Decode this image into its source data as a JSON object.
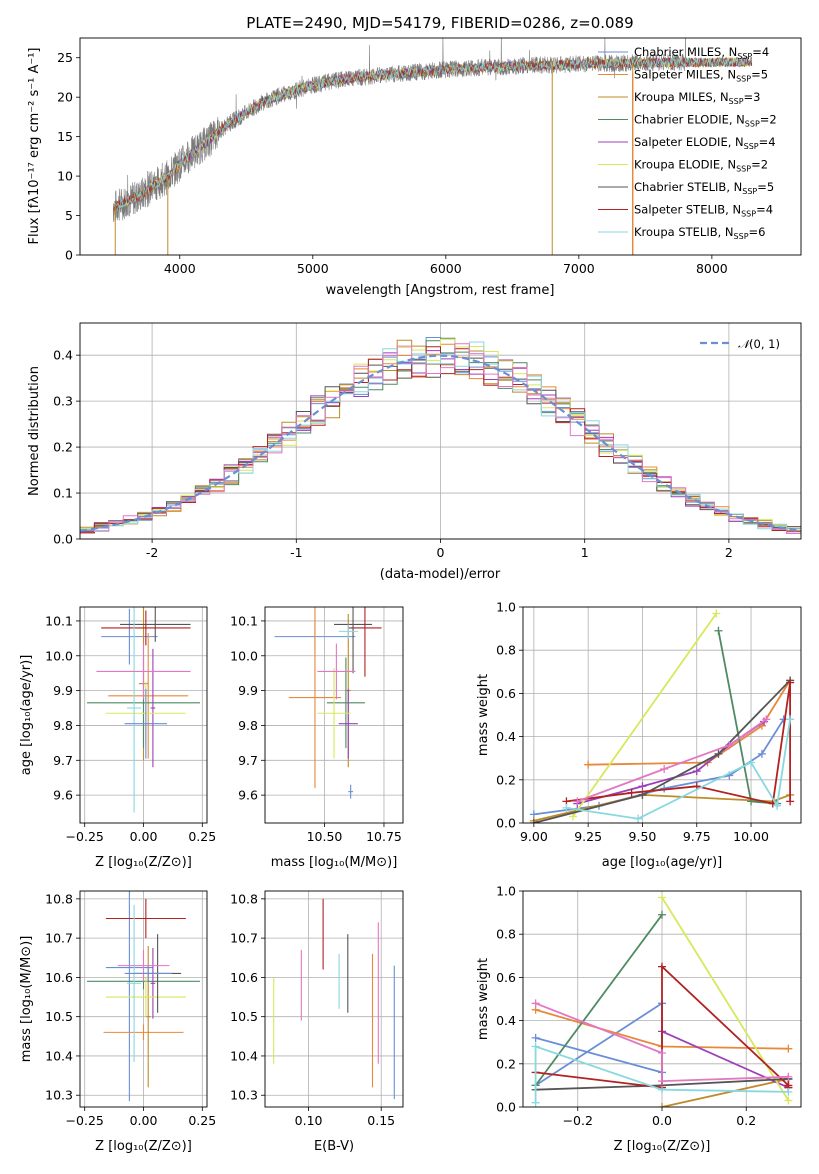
{
  "colors": [
    "#6a8fd6",
    "#e8883a",
    "#c08a28",
    "#4f8a63",
    "#9d3fb8",
    "#d8e85a",
    "#555555",
    "#b22222",
    "#88d8e0",
    "#e377c2"
  ],
  "chart_data": [
    {
      "id": "spectrum",
      "type": "line",
      "title": "PLATE=2490, MJD=54179, FIBERID=0286, z=0.089",
      "xlabel": "wavelength [Angstrom, rest frame]",
      "ylabel": "Flux [fλ10⁻¹⁷ erg cm⁻² s⁻¹ A⁻¹]",
      "xlim": [
        3250,
        8670
      ],
      "ylim": [
        0,
        27.5
      ],
      "xticks": [
        4000,
        5000,
        6000,
        7000,
        8000
      ],
      "yticks": [
        0,
        5,
        10,
        15,
        20,
        25
      ],
      "grid": false,
      "legend_position": "top-right",
      "continuum": {
        "x": [
          3500,
          3600,
          3700,
          3800,
          3900,
          4000,
          4100,
          4200,
          4300,
          4400,
          4500,
          4600,
          4800,
          5000,
          5200,
          5500,
          5800,
          6000,
          6300,
          6600,
          7000,
          7300,
          7600,
          8000,
          8300,
          8670
        ],
        "y": [
          6.0,
          6.8,
          7.5,
          8.8,
          9.8,
          11.5,
          13.0,
          14.2,
          15.8,
          17.0,
          18.0,
          19.2,
          20.5,
          21.5,
          22.2,
          22.8,
          23.2,
          23.5,
          23.8,
          24.0,
          24.2,
          24.3,
          24.4,
          24.4,
          24.5,
          24.6
        ]
      },
      "spikes": [
        {
          "x": 3515,
          "y": 0
        },
        {
          "x": 3910,
          "y": 0
        },
        {
          "x": 6800,
          "y": 0
        },
        {
          "x": 7405,
          "y": 0
        }
      ],
      "series": [
        {
          "name": "Chabrier MILES, Nₛₛₚ=4",
          "label_main": "Chabrier MILES, N",
          "label_sub": "SSP",
          "label_end": "=4"
        },
        {
          "name": "Salpeter MILES, Nₛₛₚ=5",
          "label_main": "Salpeter MILES, N",
          "label_sub": "SSP",
          "label_end": "=5"
        },
        {
          "name": "Kroupa MILES, Nₛₛₚ=3",
          "label_main": "Kroupa MILES, N",
          "label_sub": "SSP",
          "label_end": "=3"
        },
        {
          "name": "Chabrier ELODIE, Nₛₛₚ=2",
          "label_main": "Chabrier ELODIE, N",
          "label_sub": "SSP",
          "label_end": "=2"
        },
        {
          "name": "Salpeter ELODIE, Nₛₛₚ=4",
          "label_main": "Salpeter ELODIE, N",
          "label_sub": "SSP",
          "label_end": "=4"
        },
        {
          "name": "Kroupa ELODIE, Nₛₛₚ=2",
          "label_main": "Kroupa ELODIE, N",
          "label_sub": "SSP",
          "label_end": "=2"
        },
        {
          "name": "Chabrier STELIB, Nₛₛₚ=5",
          "label_main": "Chabrier STELIB, N",
          "label_sub": "SSP",
          "label_end": "=5"
        },
        {
          "name": "Salpeter STELIB, Nₛₛₚ=4",
          "label_main": "Salpeter STELIB, N",
          "label_sub": "SSP",
          "label_end": "=4"
        },
        {
          "name": "Kroupa STELIB, Nₛₛₚ=6",
          "label_main": "Kroupa STELIB, N",
          "label_sub": "SSP",
          "label_end": "=6"
        }
      ]
    },
    {
      "id": "residuals",
      "type": "bar",
      "xlabel": "(data-model)/error",
      "ylabel": "Normed distribution",
      "xlim": [
        -2.5,
        2.5
      ],
      "ylim": [
        0,
        0.47
      ],
      "xticks": [
        -2,
        -1,
        0,
        1,
        2
      ],
      "yticks": [
        0.0,
        0.1,
        0.2,
        0.3,
        0.4
      ],
      "grid": true,
      "legend_position": "top-right",
      "bin_width": 0.1,
      "gaussian": {
        "name": "N(0,1)",
        "label_script": "𝒩",
        "label_args": "(0, 1)",
        "mu": 0,
        "sigma": 1
      }
    },
    {
      "id": "z-age",
      "type": "scatter",
      "xlabel": "Z [log₁₀(Z/Z⊙)]",
      "ylabel": "age  [log₁₀(age/yr)]",
      "xlim": [
        -0.27,
        0.27
      ],
      "ylim": [
        9.52,
        10.14
      ],
      "xticks": [
        -0.25,
        0.0,
        0.25
      ],
      "xticklabels": [
        "−0.25",
        "0.00",
        "0.25"
      ],
      "yticks": [
        9.6,
        9.7,
        9.8,
        9.9,
        10.0,
        10.1
      ],
      "grid": true,
      "points": [
        {
          "x": -0.06,
          "y": 10.055,
          "xerr": 0.12,
          "yerr": 0.08
        },
        {
          "x": 0.02,
          "y": 9.885,
          "xerr": 0.17,
          "yerr": 0.18
        },
        {
          "x": 0.0,
          "y": 9.92,
          "xerr": 0.02,
          "yerr": 0.22
        },
        {
          "x": 0.0,
          "y": 9.865,
          "xerr": 0.24,
          "yerr": 0.13
        },
        {
          "x": 0.04,
          "y": 9.85,
          "xerr": 0.01,
          "yerr": 0.17
        },
        {
          "x": 0.01,
          "y": 9.835,
          "xerr": 0.17,
          "yerr": 0.09
        },
        {
          "x": 0.05,
          "y": 10.09,
          "xerr": 0.15,
          "yerr": 0.05
        },
        {
          "x": 0.01,
          "y": 10.08,
          "xerr": 0.19,
          "yerr": 0.05
        },
        {
          "x": -0.04,
          "y": 9.85,
          "xerr": 0.03,
          "yerr": 0.3
        },
        {
          "x": 0.0,
          "y": 9.955,
          "xerr": 0.2,
          "yerr": 0.08
        },
        {
          "x": 0.01,
          "y": 9.805,
          "xerr": 0.09,
          "yerr": 0.1
        }
      ]
    },
    {
      "id": "mass-age",
      "type": "scatter",
      "xlabel": "mass [log₁₀(M/M⊙)]",
      "xlim": [
        10.25,
        10.83
      ],
      "ylim": [
        9.52,
        10.14
      ],
      "xticks": [
        10.5,
        10.75
      ],
      "xticklabels": [
        "10.50",
        "10.75"
      ],
      "yticks": [
        9.6,
        9.7,
        9.8,
        9.9,
        10.0,
        10.1
      ],
      "grid": true,
      "points": [
        {
          "x": 10.46,
          "y": 10.055,
          "xerr": 0.17,
          "yerr": 0.04
        },
        {
          "x": 10.46,
          "y": 9.88,
          "xerr": 0.11,
          "yerr": 0.26
        },
        {
          "x": 10.6,
          "y": 9.9,
          "xerr": 0.01,
          "yerr": 0.22
        },
        {
          "x": 10.59,
          "y": 9.865,
          "xerr": 0.08,
          "yerr": 0.13
        },
        {
          "x": 10.6,
          "y": 9.805,
          "xerr": 0.04,
          "yerr": 0.1
        },
        {
          "x": 10.54,
          "y": 9.835,
          "xerr": 0.07,
          "yerr": 0.13
        },
        {
          "x": 10.62,
          "y": 10.09,
          "xerr": 0.08,
          "yerr": 0.14
        },
        {
          "x": 10.67,
          "y": 10.08,
          "xerr": 0.07,
          "yerr": 0.14
        },
        {
          "x": 10.6,
          "y": 10.07,
          "xerr": 0.04,
          "yerr": 0.02
        },
        {
          "x": 10.55,
          "y": 9.955,
          "xerr": 0.08,
          "yerr": 0.08
        },
        {
          "x": 10.61,
          "y": 9.61,
          "xerr": 0.01,
          "yerr": 0.02
        }
      ]
    },
    {
      "id": "age-weight",
      "type": "line",
      "xlabel": "age  [log₁₀(age/yr)]",
      "ylabel": "mass weight",
      "xlim": [
        8.95,
        10.23
      ],
      "ylim": [
        0.0,
        1.0
      ],
      "xticks": [
        9.0,
        9.25,
        9.5,
        9.75,
        10.0
      ],
      "xticklabels": [
        "9.00",
        "9.25",
        "9.50",
        "9.75",
        "10.00"
      ],
      "yticks": [
        0.0,
        0.2,
        0.4,
        0.6,
        0.8,
        1.0
      ],
      "grid": true,
      "series": [
        {
          "x": [
            9.0,
            9.3,
            9.6,
            9.9,
            10.05,
            10.15
          ],
          "y": [
            0.04,
            0.08,
            0.16,
            0.22,
            0.32,
            0.48
          ]
        },
        {
          "x": [
            9.25,
            9.8,
            10.05,
            10.18
          ],
          "y": [
            0.27,
            0.28,
            0.45,
            0.66
          ]
        },
        {
          "x": [
            9.0,
            9.5,
            10.1,
            10.18
          ],
          "y": [
            0.01,
            0.13,
            0.1,
            0.13
          ]
        },
        {
          "x": [
            9.85,
            10.0,
            10.12
          ],
          "y": [
            0.89,
            0.1,
            0.09
          ]
        },
        {
          "x": [
            9.2,
            9.5,
            9.75,
            9.9,
            10.06
          ],
          "y": [
            0.09,
            0.17,
            0.24,
            0.36,
            0.47
          ]
        },
        {
          "x": [
            9.18,
            9.84
          ],
          "y": [
            0.03,
            0.97
          ]
        },
        {
          "x": [
            9.0,
            9.5,
            9.85,
            10.18
          ],
          "y": [
            0.0,
            0.13,
            0.32,
            0.66
          ]
        },
        {
          "x": [
            9.15,
            9.45,
            9.75,
            10.1,
            10.18,
            10.18
          ],
          "y": [
            0.1,
            0.14,
            0.17,
            0.09,
            0.65,
            0.1
          ]
        },
        {
          "x": [
            9.15,
            9.48,
            10.0,
            10.12,
            10.18
          ],
          "y": [
            0.07,
            0.02,
            0.28,
            0.08,
            0.48
          ]
        },
        {
          "x": [
            9.2,
            9.6,
            9.9,
            10.07
          ],
          "y": [
            0.1,
            0.25,
            0.36,
            0.48
          ]
        }
      ]
    },
    {
      "id": "z-mass",
      "type": "scatter",
      "xlabel": "Z [log₁₀(Z/Z⊙)]",
      "ylabel": "mass [log₁₀(M/M⊙)]",
      "xlim": [
        -0.27,
        0.27
      ],
      "ylim": [
        10.27,
        10.82
      ],
      "xticks": [
        -0.25,
        0.0,
        0.25
      ],
      "xticklabels": [
        "−0.25",
        "0.00",
        "0.25"
      ],
      "yticks": [
        10.3,
        10.4,
        10.5,
        10.6,
        10.7,
        10.8
      ],
      "grid": true,
      "points": [
        {
          "x": -0.06,
          "y": 10.625,
          "xerr": 0.1,
          "yerr": 0.34
        },
        {
          "x": 0.0,
          "y": 10.46,
          "xerr": 0.17,
          "yerr": 0.02
        },
        {
          "x": 0.02,
          "y": 10.5,
          "xerr": 0.01,
          "yerr": 0.18
        },
        {
          "x": 0.0,
          "y": 10.59,
          "xerr": 0.24,
          "yerr": 0.02
        },
        {
          "x": 0.04,
          "y": 10.585,
          "xerr": 0.01,
          "yerr": 0.09
        },
        {
          "x": 0.01,
          "y": 10.55,
          "xerr": 0.17,
          "yerr": 0.05
        },
        {
          "x": 0.06,
          "y": 10.61,
          "xerr": 0.1,
          "yerr": 0.1
        },
        {
          "x": 0.01,
          "y": 10.75,
          "xerr": 0.17,
          "yerr": 0.05
        },
        {
          "x": -0.04,
          "y": 10.585,
          "xerr": 0.03,
          "yerr": 0.2
        },
        {
          "x": 0.0,
          "y": 10.63,
          "xerr": 0.11,
          "yerr": 0.04
        },
        {
          "x": 0.02,
          "y": 10.61,
          "xerr": 0.1,
          "yerr": 0.02
        }
      ]
    },
    {
      "id": "ebv-mass",
      "type": "scatter",
      "xlabel": "E(B-V)",
      "xlim": [
        0.07,
        0.165
      ],
      "ylim": [
        10.27,
        10.82
      ],
      "xticks": [
        0.1,
        0.15
      ],
      "xticklabels": [
        "0.10",
        "0.15"
      ],
      "yticks": [
        10.3,
        10.4,
        10.5,
        10.6,
        10.7,
        10.8
      ],
      "grid": true,
      "points": [
        {
          "x": 0.159,
          "y": 10.46,
          "yerr": 0.17,
          "color": 0
        },
        {
          "x": 0.144,
          "y": 10.49,
          "yerr": 0.17,
          "color": 1
        },
        {
          "x": 0.076,
          "y": 10.49,
          "yerr": 0.11,
          "color": 5
        },
        {
          "x": 0.095,
          "y": 10.58,
          "yerr": 0.09,
          "color": 9
        },
        {
          "x": 0.11,
          "y": 10.71,
          "yerr": 0.09,
          "color": 7
        },
        {
          "x": 0.121,
          "y": 10.59,
          "yerr": 0.07,
          "color": 8
        },
        {
          "x": 0.127,
          "y": 10.61,
          "yerr": 0.1,
          "color": 6
        },
        {
          "x": 0.148,
          "y": 10.56,
          "yerr": 0.18,
          "color": 9
        }
      ]
    },
    {
      "id": "z-weight",
      "type": "line",
      "xlabel": "Z [log₁₀(Z/Z⊙)]",
      "ylabel": "mass weight",
      "xlim": [
        -0.33,
        0.33
      ],
      "ylim": [
        0.0,
        1.0
      ],
      "xticks": [
        -0.2,
        0.0,
        0.2
      ],
      "xticklabels": [
        "−0.2",
        "0.0",
        "0.2"
      ],
      "yticks": [
        0.0,
        0.2,
        0.4,
        0.6,
        0.8,
        1.0
      ],
      "grid": true,
      "series": [
        {
          "x": [
            -0.3,
            0.0,
            0.0,
            -0.3
          ],
          "y": [
            0.32,
            0.16,
            0.48,
            0.1
          ]
        },
        {
          "x": [
            -0.3,
            0.0,
            0.3
          ],
          "y": [
            0.45,
            0.28,
            0.27
          ]
        },
        {
          "x": [
            0.0,
            0.3
          ],
          "y": [
            0.0,
            0.13
          ]
        },
        {
          "x": [
            -0.3,
            0.0
          ],
          "y": [
            0.1,
            0.89
          ]
        },
        {
          "x": [
            0.0,
            0.3,
            0.3
          ],
          "y": [
            0.35,
            0.09,
            0.13
          ]
        },
        {
          "x": [
            0.0,
            0.3
          ],
          "y": [
            0.97,
            0.03
          ]
        },
        {
          "x": [
            -0.3,
            0.0,
            0.3
          ],
          "y": [
            0.08,
            0.1,
            0.13
          ]
        },
        {
          "x": [
            -0.3,
            0.0,
            0.0,
            0.3,
            0.3
          ],
          "y": [
            0.16,
            0.09,
            0.65,
            0.1,
            0.09
          ]
        },
        {
          "x": [
            -0.3,
            -0.3,
            0.0,
            0.3
          ],
          "y": [
            0.02,
            0.28,
            0.08,
            0.07
          ]
        },
        {
          "x": [
            -0.3,
            0.0,
            0.0,
            0.3
          ],
          "y": [
            0.48,
            0.25,
            0.12,
            0.14
          ]
        }
      ]
    }
  ]
}
